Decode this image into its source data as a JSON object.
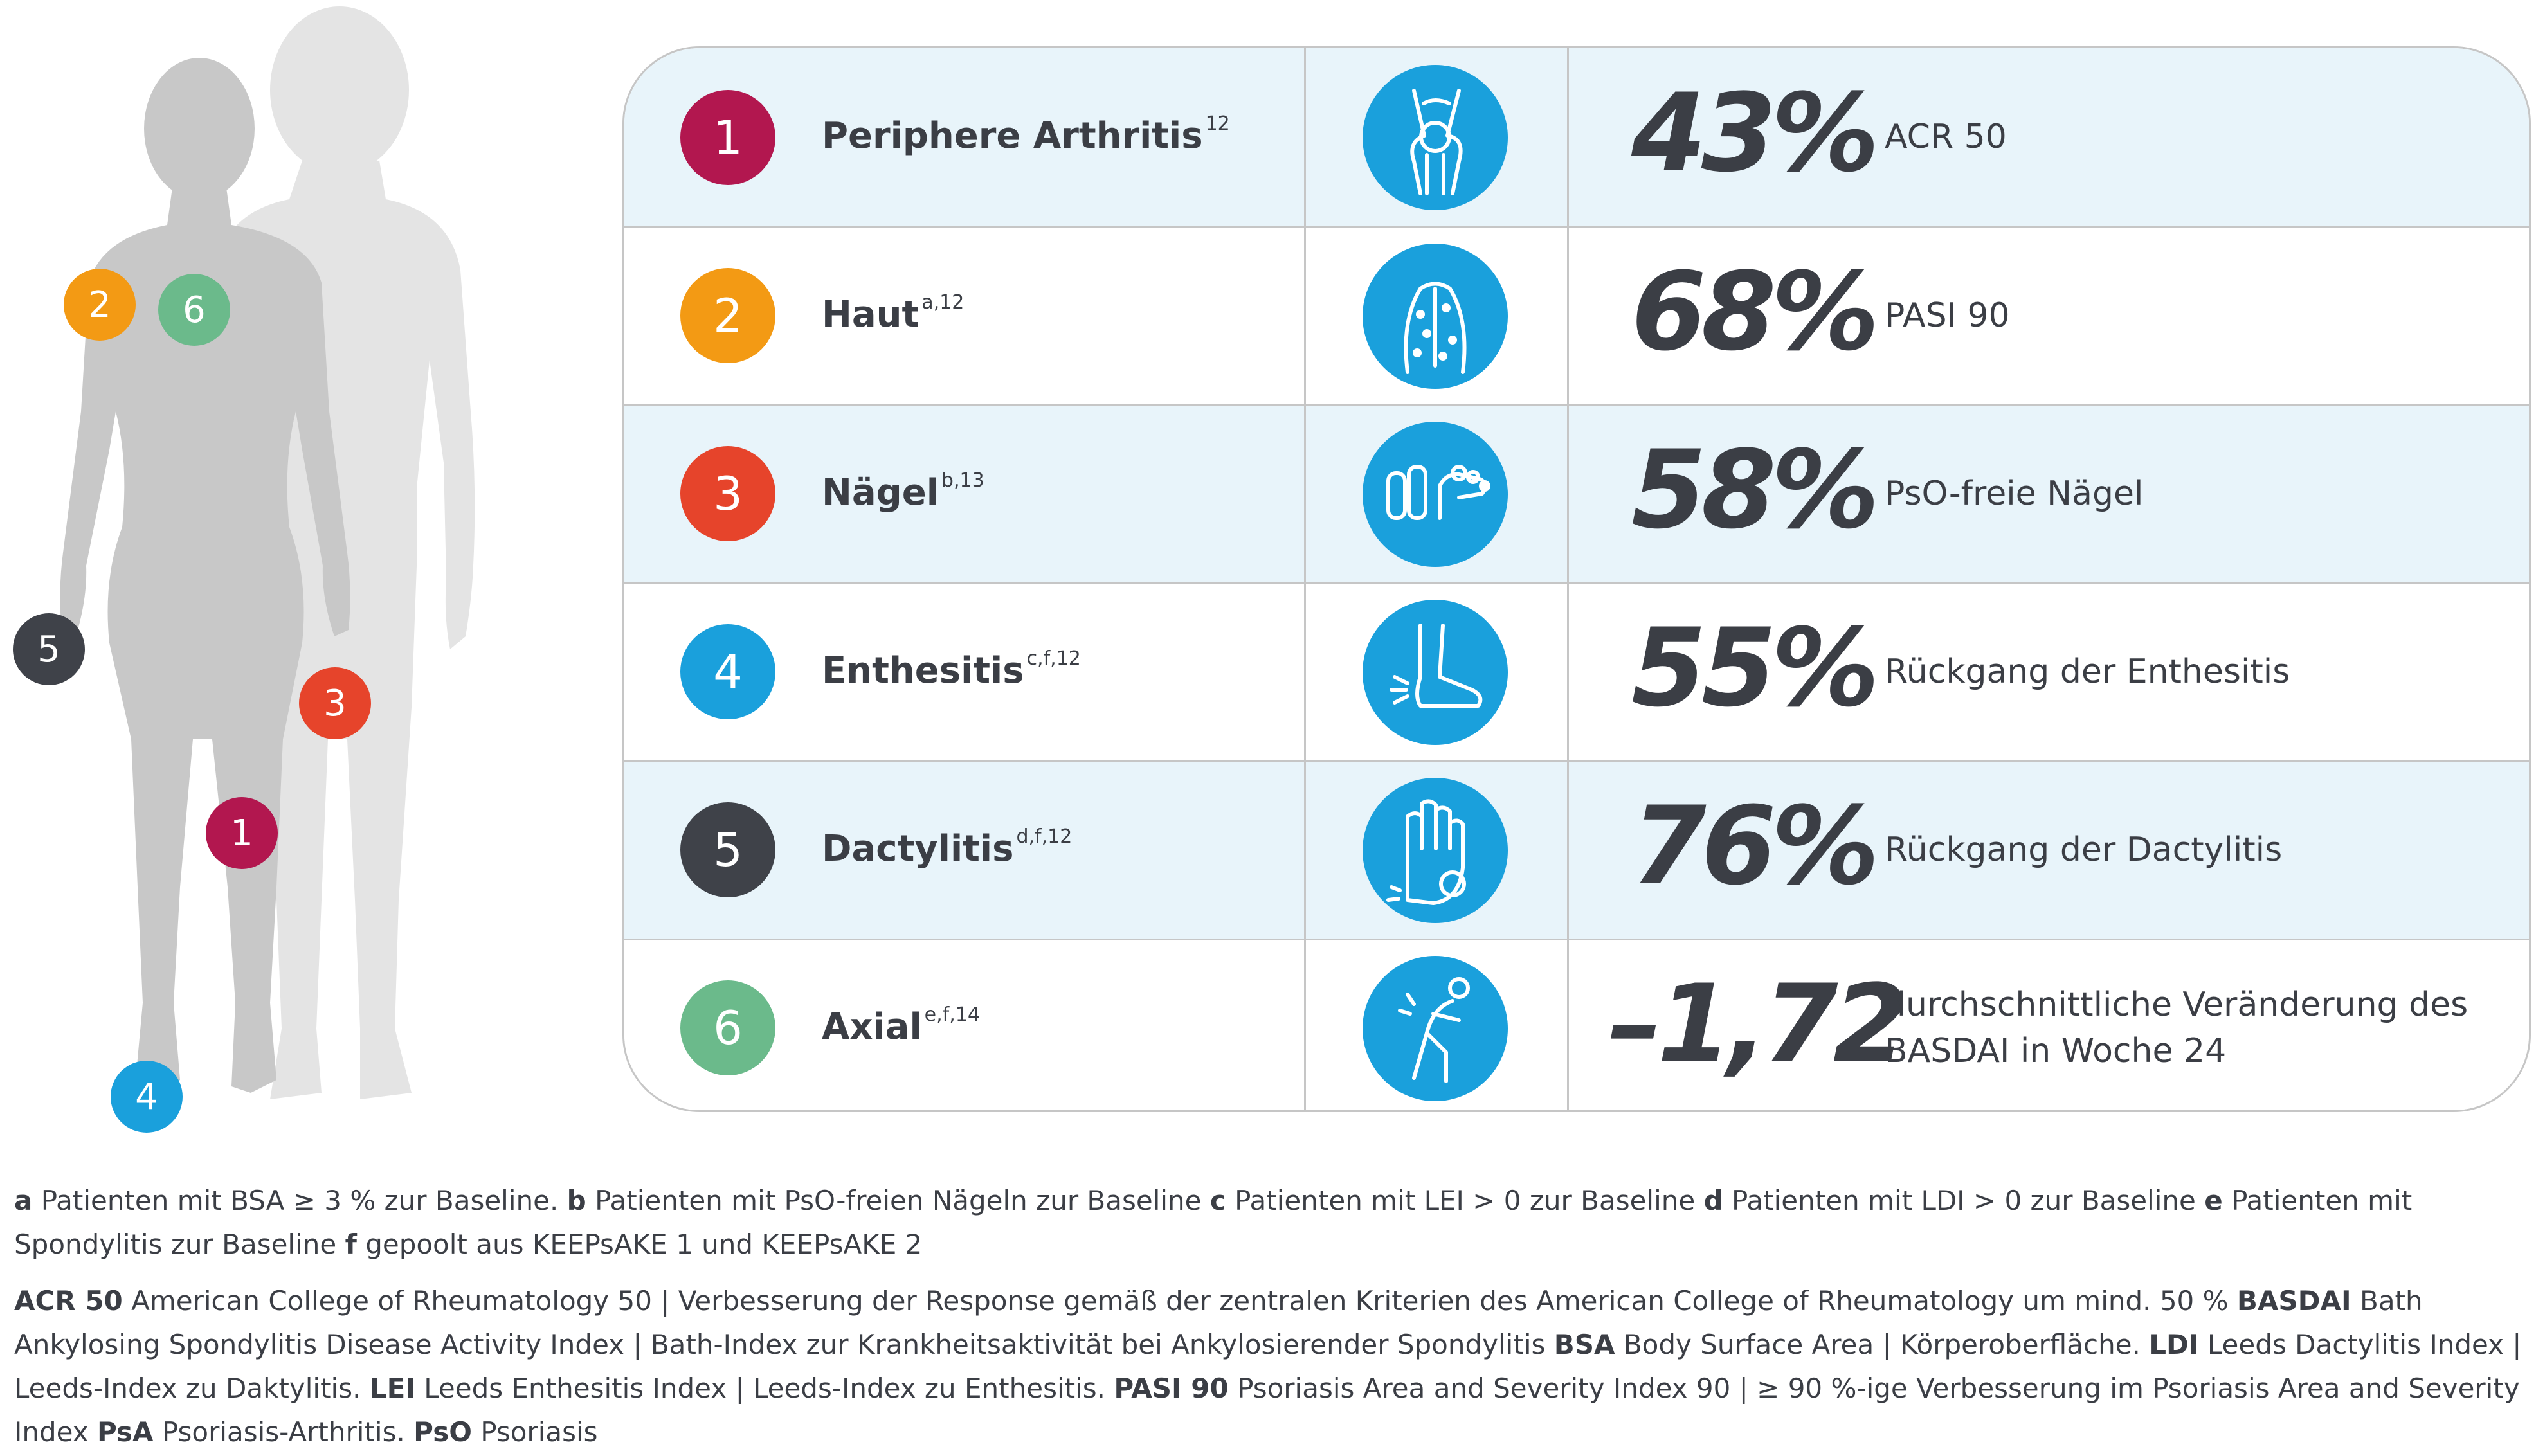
{
  "colors": {
    "c1": "#b2174f",
    "c2": "#f39a14",
    "c3": "#e6442b",
    "c4": "#1aa0dc",
    "c5": "#3f4249",
    "c6": "#6bba8b",
    "icon_bg": "#1aa0dc",
    "row_shade": "#e8f4fa",
    "silhouette_front": "#c8c8c8",
    "silhouette_back": "#e4e4e4"
  },
  "markers": [
    "2",
    "6",
    "5",
    "3",
    "1",
    "4"
  ],
  "rows": [
    {
      "num": "1",
      "label": "Periphere Arthritis",
      "sup": "12",
      "icon": "knee-joint-icon",
      "value": "43%",
      "desc": "ACR 50"
    },
    {
      "num": "2",
      "label": "Haut",
      "sup": "a,12",
      "icon": "skin-back-icon",
      "value": "68%",
      "desc": "PASI 90"
    },
    {
      "num": "3",
      "label": "Nägel",
      "sup": "b,13",
      "icon": "nails-icon",
      "value": "58%",
      "desc": "PsO-freie Nägel"
    },
    {
      "num": "4",
      "label": "Enthesitis",
      "sup": "c,f,12",
      "icon": "foot-heel-icon",
      "value": "55%",
      "desc": "Rückgang der Enthesitis"
    },
    {
      "num": "5",
      "label": "Dactylitis",
      "sup": "d,f,12",
      "icon": "hand-finger-icon",
      "value": "76%",
      "desc": "Rückgang der Dactylitis"
    },
    {
      "num": "6",
      "label": "Axial",
      "sup": "e,f,14",
      "icon": "back-pain-icon",
      "value": "–1,72",
      "desc": "durchschnittliche Veränderung des BASDAI in Woche 24"
    }
  ],
  "footnotes1": [
    {
      "k": "a",
      "t": " Patienten mit BSA ≥ 3 % zur Baseline. "
    },
    {
      "k": "b",
      "t": " Patienten mit PsO-freien Nägeln zur Baseline "
    },
    {
      "k": "c",
      "t": " Patienten mit LEI > 0 zur Baseline "
    },
    {
      "k": "d",
      "t": " Patienten mit LDI > 0 zur Baseline "
    },
    {
      "k": "e",
      "t": " Patienten mit Spondylitis zur Baseline "
    },
    {
      "k": "f",
      "t": " gepoolt aus KEEPsAKE 1 und KEEPsAKE 2"
    }
  ],
  "footnotes2": [
    {
      "k": "ACR 50",
      "t": " American College of Rheumatology 50 | Verbesserung der Response gemäß der zentralen Kriterien des American College of Rheumatology  um mind. 50 % "
    },
    {
      "k": "BASDAI",
      "t": " Bath Ankylosing Spondylitis Disease Activity Index | Bath-Index zur Krankheitsaktivität bei Ankylosierender Spondylitis "
    },
    {
      "k": "BSA",
      "t": " Body Surface Area | Körperoberfläche. "
    },
    {
      "k": "LDI",
      "t": " Leeds Dactylitis Index | Leeds-Index zu Daktylitis. "
    },
    {
      "k": "LEI",
      "t": " Leeds Enthesitis Index | Leeds-Index zu Enthesitis. "
    },
    {
      "k": "PASI 90",
      "t": " Psoriasis Area and Severity Index 90 | ≥ 90 %-ige Verbesserung im Psoriasis Area and Severity Index "
    },
    {
      "k": "PsA",
      "t": " Psoriasis-Arthritis. "
    },
    {
      "k": "PsO",
      "t": " Psoriasis"
    }
  ]
}
